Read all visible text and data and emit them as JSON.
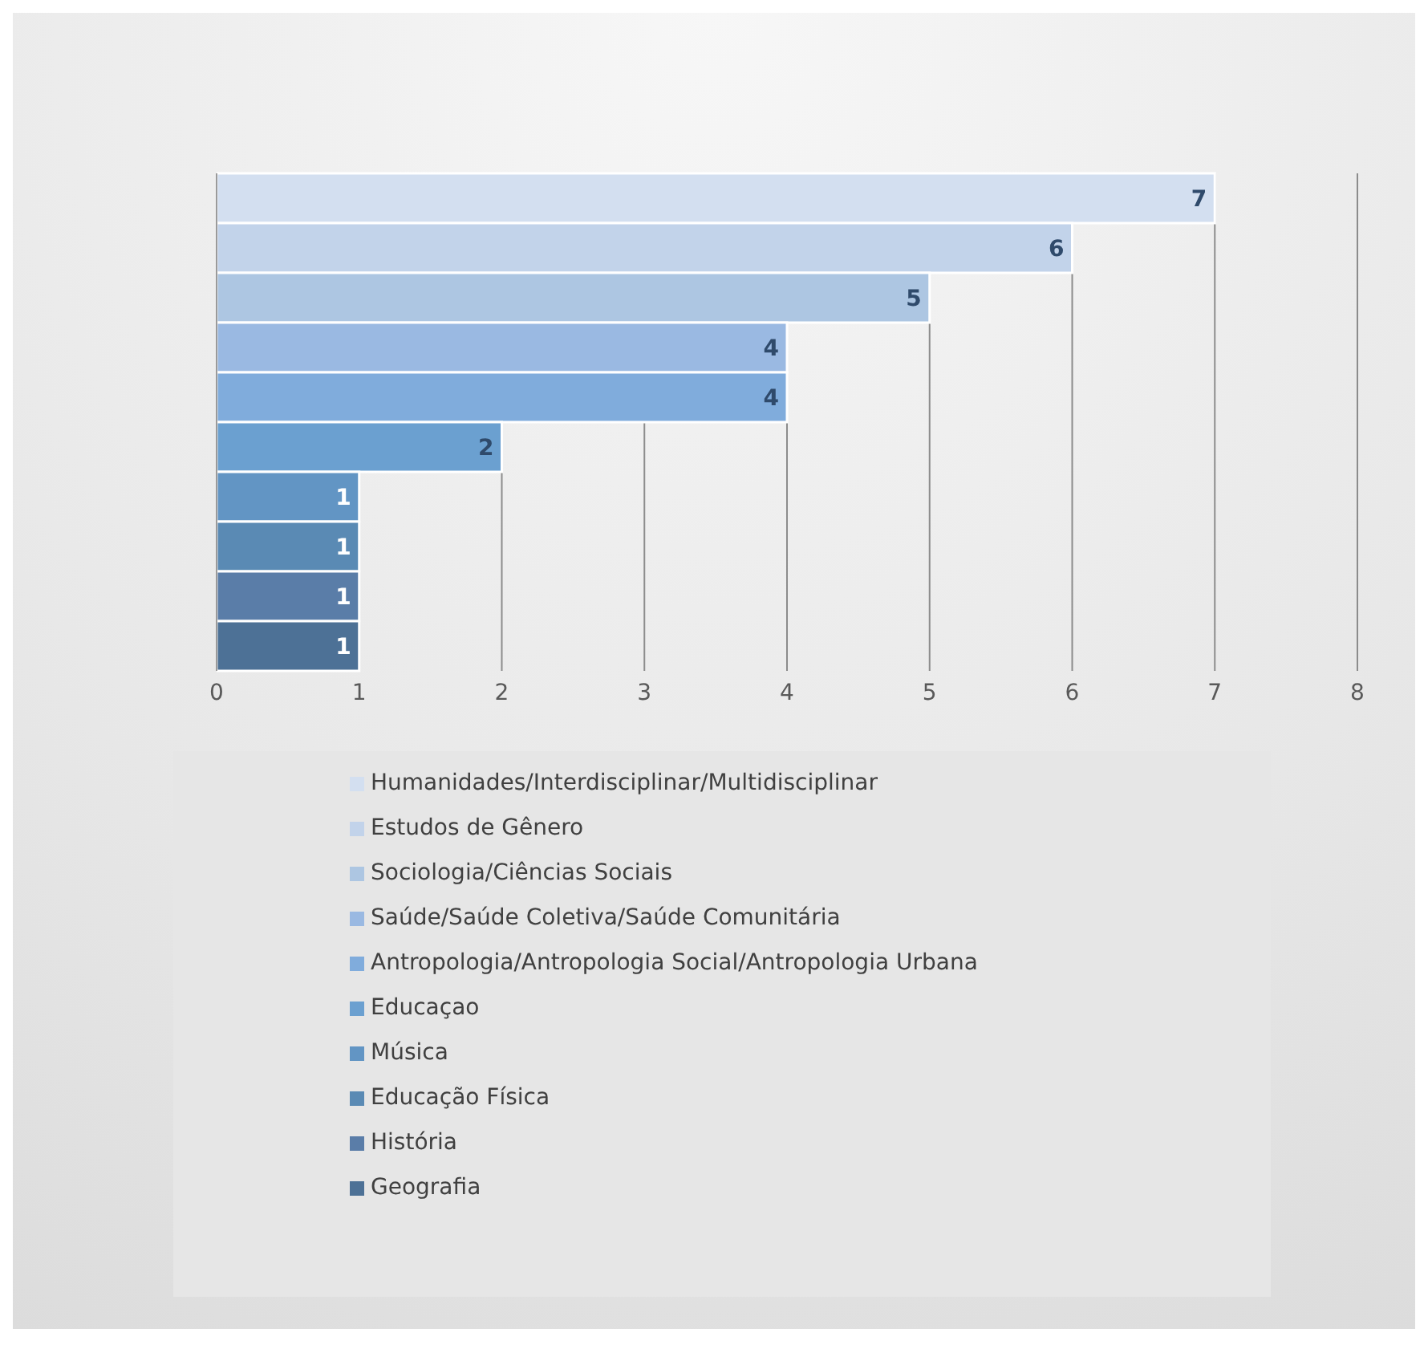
{
  "chart_data": {
    "type": "bar",
    "orientation": "horizontal",
    "categories": [
      null,
      null,
      null,
      null,
      null,
      null,
      null,
      null,
      null,
      null
    ],
    "series": [
      {
        "name": "Humanidades/Interdisciplinar/Multidisciplinar",
        "color": "#d3dff0",
        "values": [
          7,
          null,
          null,
          null,
          null,
          null,
          null,
          null,
          null,
          null
        ]
      },
      {
        "name": "Estudos de Gênero",
        "color": "#c2d3ea",
        "values": [
          null,
          6,
          null,
          null,
          null,
          null,
          null,
          null,
          null,
          null
        ]
      },
      {
        "name": "Sociologia/Ciências Sociais",
        "color": "#adc6e2",
        "values": [
          null,
          null,
          5,
          null,
          null,
          null,
          null,
          null,
          null,
          null
        ]
      },
      {
        "name": "Saúde/Saúde Coletiva/Saúde Comunitária",
        "color": "#9ab9e2",
        "values": [
          null,
          null,
          null,
          4,
          null,
          null,
          null,
          null,
          null,
          null
        ]
      },
      {
        "name": "Antropologia/Antropologia Social/Antropologia Urbana",
        "color": "#80acdc",
        "values": [
          null,
          null,
          null,
          null,
          4,
          null,
          null,
          null,
          null,
          null
        ]
      },
      {
        "name": "Educaçao",
        "color": "#6ba0d0",
        "values": [
          null,
          null,
          null,
          null,
          null,
          2,
          null,
          null,
          null,
          null
        ]
      },
      {
        "name": "Música",
        "color": "#6295c4",
        "values": [
          null,
          null,
          null,
          null,
          null,
          null,
          1,
          null,
          null,
          null
        ]
      },
      {
        "name": "Educação Física",
        "color": "#5a8ab4",
        "values": [
          null,
          null,
          null,
          null,
          null,
          null,
          null,
          1,
          null,
          null
        ]
      },
      {
        "name": "História",
        "color": "#5a7da8",
        "values": [
          null,
          null,
          null,
          null,
          null,
          null,
          null,
          null,
          1,
          null
        ]
      },
      {
        "name": "Geografia",
        "color": "#4d7196",
        "values": [
          null,
          null,
          null,
          null,
          null,
          null,
          null,
          null,
          null,
          1
        ]
      }
    ],
    "xlim": [
      0,
      8
    ],
    "xticks": [
      0,
      1,
      2,
      3,
      4,
      5,
      6,
      7,
      8
    ],
    "grid": "x",
    "legend": "bottom",
    "data_labels": true
  }
}
